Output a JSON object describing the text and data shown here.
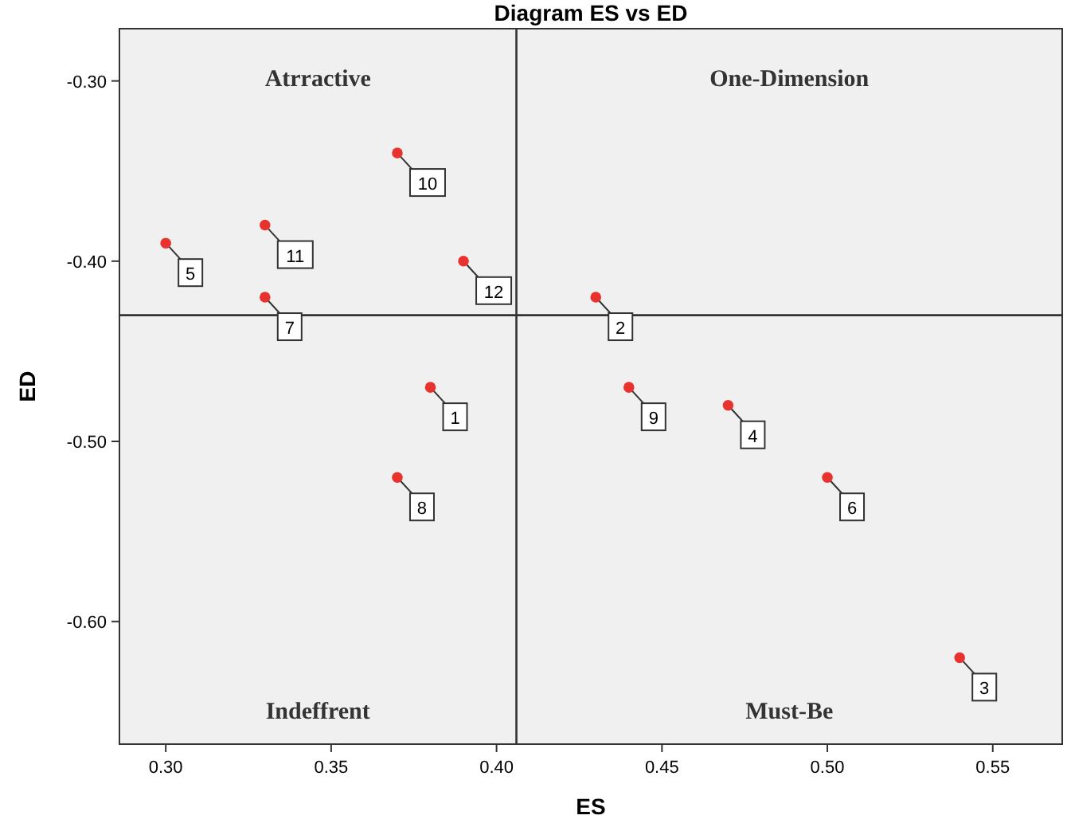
{
  "chart_data": {
    "type": "scatter",
    "title": "Diagram ES vs ED",
    "xlabel": "ES",
    "ylabel": "ED",
    "x": [
      0.38,
      0.43,
      0.54,
      0.47,
      0.3,
      0.5,
      0.33,
      0.37,
      0.44,
      0.37,
      0.33,
      0.39
    ],
    "series": [
      {
        "color": "#e8322e",
        "values": [
          -0.47,
          -0.42,
          -0.62,
          -0.48,
          -0.39,
          -0.52,
          -0.42,
          -0.52,
          -0.47,
          -0.34,
          -0.38,
          -0.4
        ]
      }
    ],
    "xlim": [
      0.286,
      0.571
    ],
    "xticks": [
      {
        "value": 0.3,
        "label": "0.30"
      },
      {
        "value": 0.35,
        "label": "0.35"
      },
      {
        "value": 0.4,
        "label": "0.40"
      },
      {
        "value": 0.45,
        "label": "0.45"
      },
      {
        "value": 0.5,
        "label": "0.50"
      },
      {
        "value": 0.55,
        "label": "0.55"
      }
    ],
    "ylim": [
      -0.668,
      -0.271
    ],
    "yticks": [
      {
        "value": -0.6,
        "label": "-0.60"
      },
      {
        "value": -0.5,
        "label": "-0.50"
      },
      {
        "value": -0.4,
        "label": "-0.40"
      },
      {
        "value": -0.3,
        "label": "-0.30"
      }
    ],
    "ref_lines": [
      {
        "axis": "x",
        "value": 0.406,
        "color": "#333333"
      },
      {
        "axis": "y",
        "value": -0.43,
        "color": "#333333"
      }
    ],
    "annotations": [
      "Atrractive",
      "One-Dimension",
      "Indeffrent",
      "Must-Be",
      {
        "text": "1",
        "x": 0.38,
        "y": -0.47
      },
      {
        "text": "2",
        "x": 0.43,
        "y": -0.42
      },
      {
        "text": "3",
        "x": 0.54,
        "y": -0.62
      },
      {
        "text": "4",
        "x": 0.47,
        "y": -0.48
      },
      {
        "text": "5",
        "x": 0.3,
        "y": -0.39
      },
      {
        "text": "6",
        "x": 0.5,
        "y": -0.52
      },
      {
        "text": "7",
        "x": 0.33,
        "y": -0.42
      },
      {
        "text": "8",
        "x": 0.37,
        "y": -0.52
      },
      {
        "text": "9",
        "x": 0.44,
        "y": -0.47
      },
      {
        "text": "10",
        "x": 0.37,
        "y": -0.34
      },
      {
        "text": "11",
        "x": 0.33,
        "y": -0.38
      },
      {
        "text": "12",
        "x": 0.39,
        "y": -0.4
      }
    ],
    "grid": false,
    "marker": "circle"
  }
}
